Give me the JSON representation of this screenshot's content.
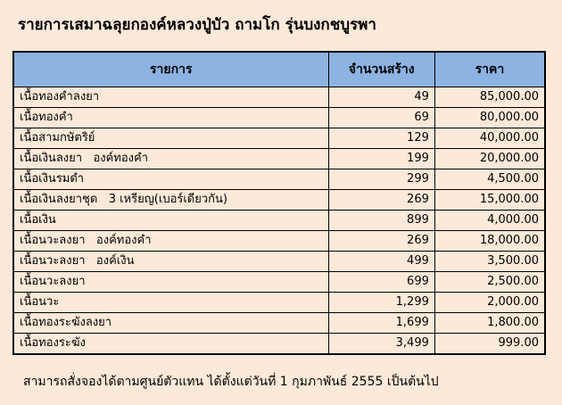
{
  "title": "รายการเสมาฉลุยกองค์หลวงปู่บัว ถามโก รุ่นบงกชบูรพา",
  "headers": [
    "รายการ",
    "จำนวนสร้าง",
    "ราคา"
  ],
  "rows": [
    {
      "item": "เนื้อทองคำลงยา",
      "qty": "49",
      "price": "85,000.00"
    },
    {
      "item": "เนื้อทองคำ",
      "qty": "69",
      "price": "80,000.00"
    },
    {
      "item": "เนื้อสามกษัตริย์",
      "qty": "129",
      "price": "40,000.00"
    },
    {
      "item": "เนื้อเงินลงยา   องค์ทองคำ",
      "qty": "199",
      "price": "20,000.00"
    },
    {
      "item": "เนื้อเงินรมดำ",
      "qty": "299",
      "price": "4,500.00"
    },
    {
      "item": "เนื้อเงินลงยาชุด   3 เหรียญ(เบอร์เดียวกัน)",
      "qty": "269",
      "price": "15,000.00"
    },
    {
      "item": "เนื้อเงิน",
      "qty": "899",
      "price": "4,000.00"
    },
    {
      "item": "เนื้อนวะลงยา   องค์ทองคำ",
      "qty": "269",
      "price": "18,000.00"
    },
    {
      "item": "เนื้อนวะลงยา   องค์เงิน",
      "qty": "499",
      "price": "3,500.00"
    },
    {
      "item": "เนื้อนวะลงยา",
      "qty": "699",
      "price": "2,500.00"
    },
    {
      "item": "เนื้อนวะ",
      "qty": "1,299",
      "price": "2,000.00"
    },
    {
      "item": "เนื้อทองระฆังลงยา",
      "qty": "1,699",
      "price": "1,800.00"
    },
    {
      "item": "เนื้อทองระฆัง",
      "qty": "3,499",
      "price": "999.00"
    }
  ],
  "footer": "สามารถสั่งจองได้ตามศูนย์ตัวแทน   ได้ตั้งแต่วันที่   1 กุมภาพันธ์   2555 เป็นต้นไป",
  "colors": {
    "background": "#fde9d9",
    "header": "#8db3e2"
  }
}
